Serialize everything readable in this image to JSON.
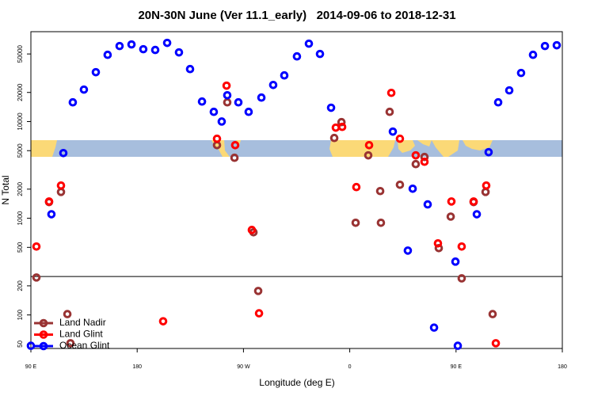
{
  "chart_data": {
    "type": "scatter",
    "title": "20N-30N June (Ver 11.1_early)   2014-09-06 to 2018-12-31",
    "x_label": "Longitude (deg E)",
    "y_label": "N Total",
    "log_y": true,
    "xlim": [
      90,
      540
    ],
    "ylim": [
      45,
      85000
    ],
    "xticks": [
      {
        "value": 90,
        "label": "90 E"
      },
      180,
      {
        "value": 270,
        "label": "90 W"
      },
      {
        "value": 360,
        "label": "0"
      },
      {
        "value": 450,
        "label": "90 E"
      },
      {
        "value": 540,
        "label": "180"
      }
    ],
    "yticks": [
      50,
      100,
      200,
      500,
      1000,
      2000,
      5000,
      10000,
      20000,
      50000
    ],
    "reference_line": 250,
    "legend": "bottom-left",
    "series": [
      {
        "name": "Land Nadir",
        "color": "#993333",
        "x": [
          94.7,
          105.4,
          115.5,
          120.9,
          123.5,
          247.6,
          256.3,
          262.4,
          278.5,
          282.5,
          346.9,
          353,
          365,
          375.7,
          385.8,
          386.4,
          393.8,
          402.5,
          415.9,
          423.3,
          435.4,
          445.5,
          454.8,
          464.9,
          475,
          481
        ],
        "values": [
          244,
          1470,
          1870,
          102,
          51,
          5700,
          15800,
          4220,
          716,
          177,
          6760,
          9860,
          898,
          4470,
          1910,
          898,
          12600,
          2220,
          3630,
          4300,
          491,
          1040,
          239,
          1470,
          1870,
          102
        ]
      },
      {
        "name": "Land Glint",
        "color": "#ff0000",
        "x": [
          94.7,
          105.4,
          115.5,
          202,
          247.6,
          263,
          255.7,
          277.1,
          283.2,
          348.2,
          353.6,
          365.6,
          376.4,
          395.2,
          402.5,
          415.9,
          423.3,
          434.7,
          446.1,
          454.8,
          464.9,
          475.6,
          483.7
        ],
        "values": [
          510,
          1490,
          2180,
          86,
          6640,
          5700,
          23500,
          757,
          104,
          8650,
          8810,
          2100,
          5700,
          19800,
          6640,
          4470,
          3840,
          550,
          1490,
          510,
          1490,
          2180,
          51
        ]
      },
      {
        "name": "Ocean Glint",
        "color": "#0000ff",
        "x": [
          90,
          117.5,
          107.4,
          125.5,
          134.9,
          145,
          155,
          165.1,
          175.2,
          185.2,
          195.3,
          205.4,
          215.4,
          224.8,
          234.9,
          244.9,
          251.6,
          256.3,
          265.7,
          274.4,
          285.2,
          295.2,
          304.6,
          315.3,
          325.4,
          334.8,
          344.2,
          396.5,
          413.3,
          426,
          409.2,
          431.4,
          449.5,
          451.5,
          467.6,
          477.6,
          485.7,
          495.1,
          505.1,
          515.2,
          525.3,
          535.3
        ],
        "values": [
          48,
          4720,
          1100,
          15800,
          21400,
          32400,
          49000,
          60400,
          62700,
          56000,
          55000,
          65100,
          51900,
          34900,
          16100,
          12600,
          10000,
          18700,
          15800,
          12600,
          17700,
          23900,
          30000,
          47200,
          63900,
          50000,
          13900,
          7870,
          2020,
          1390,
          463,
          74,
          356,
          48,
          1100,
          4820,
          15800,
          21000,
          31800,
          49000,
          60400,
          61500
        ]
      }
    ]
  }
}
